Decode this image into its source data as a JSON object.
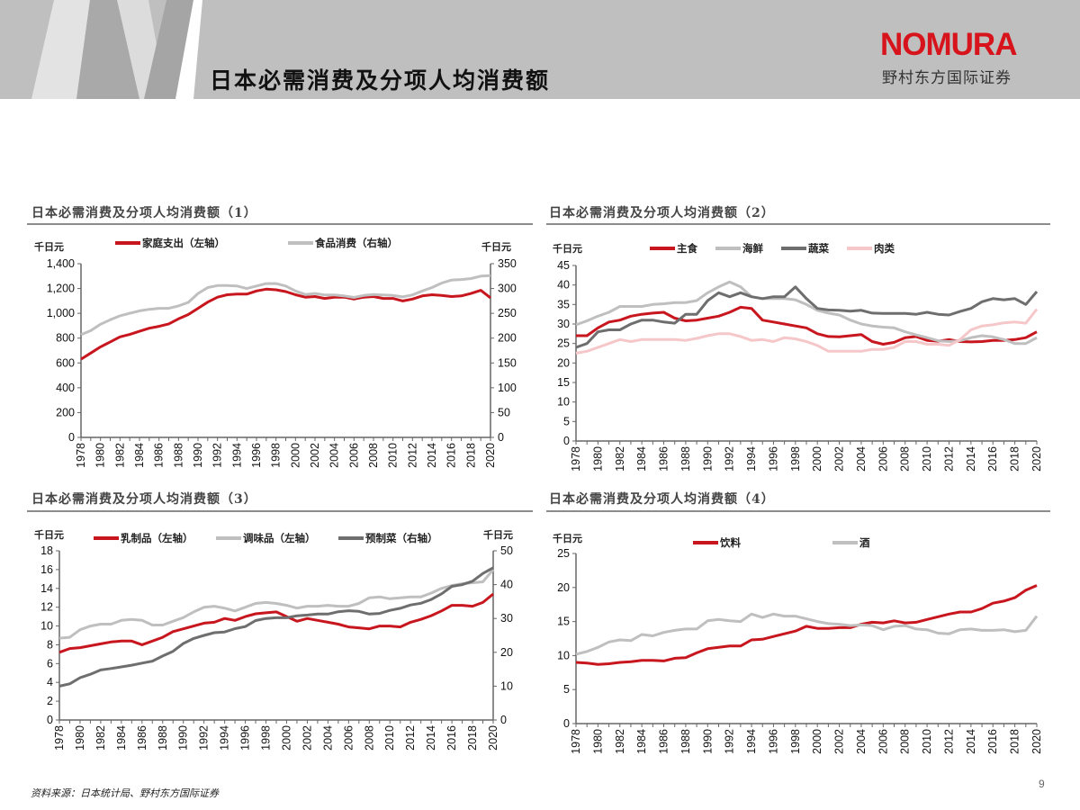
{
  "header": {
    "title": "日本必需消费及分项人均消费额",
    "logo_text": "NOMURA",
    "logo_sub": "野村东方国际证券",
    "band_color": "#bfbfbf"
  },
  "footer": {
    "source": "资料来源：日本统计局、野村东方国际证券",
    "page_number": "9"
  },
  "colors": {
    "red": "#c8161e",
    "light_gray": "#bfbfbf",
    "dark_gray": "#6e6e6e",
    "pink": "#f5c7c9"
  },
  "chart_data": [
    {
      "type": "line",
      "title": "日本必需消费及分项人均消费额（1）",
      "y_unit_left": "千日元",
      "y_unit_right": "千日元",
      "ylim_left": [
        0,
        1400
      ],
      "ylim_right": [
        0,
        350
      ],
      "yticks_left": [
        "0",
        "200",
        "400",
        "600",
        "800",
        "1,000",
        "1,200",
        "1,400"
      ],
      "yticks_right": [
        "0",
        "50",
        "100",
        "150",
        "200",
        "250",
        "300",
        "350"
      ],
      "x_start": 1978,
      "x_end": 2020,
      "xticks": [
        "1978",
        "1980",
        "1982",
        "1984",
        "1986",
        "1988",
        "1990",
        "1992",
        "1994",
        "1996",
        "1998",
        "2000",
        "2002",
        "2004",
        "2006",
        "2008",
        "2010",
        "2012",
        "2014",
        "2016",
        "2018",
        "2020"
      ],
      "grid": false,
      "legend": "top",
      "series": [
        {
          "name": "家庭支出（左轴）",
          "axis": "left",
          "color": "#c8161e",
          "values": [
            630,
            680,
            730,
            770,
            810,
            830,
            855,
            880,
            895,
            915,
            955,
            990,
            1040,
            1090,
            1130,
            1150,
            1155,
            1155,
            1180,
            1195,
            1190,
            1175,
            1150,
            1130,
            1135,
            1120,
            1130,
            1130,
            1115,
            1130,
            1135,
            1120,
            1120,
            1100,
            1115,
            1140,
            1150,
            1145,
            1135,
            1140,
            1160,
            1185,
            1125
          ]
        },
        {
          "name": "食品消费（右轴）",
          "axis": "right",
          "color": "#bfbfbf",
          "values": [
            207,
            215,
            228,
            237,
            245,
            250,
            255,
            258,
            260,
            260,
            265,
            272,
            290,
            302,
            306,
            306,
            305,
            300,
            305,
            310,
            310,
            305,
            295,
            288,
            290,
            287,
            287,
            285,
            282,
            286,
            288,
            287,
            286,
            283,
            287,
            295,
            302,
            311,
            317,
            318,
            320,
            325,
            326
          ]
        }
      ]
    },
    {
      "type": "line",
      "title": "日本必需消费及分项人均消费额（2）",
      "y_unit_left": "千日元",
      "ylim_left": [
        0,
        45
      ],
      "yticks_left": [
        "0",
        "5",
        "10",
        "15",
        "20",
        "25",
        "30",
        "35",
        "40",
        "45"
      ],
      "x_start": 1978,
      "x_end": 2020,
      "xticks": [
        "1978",
        "1980",
        "1982",
        "1984",
        "1986",
        "1988",
        "1990",
        "1992",
        "1994",
        "1996",
        "1998",
        "2000",
        "2002",
        "2004",
        "2006",
        "2008",
        "2010",
        "2012",
        "2014",
        "2016",
        "2018",
        "2020"
      ],
      "grid": false,
      "legend": "top",
      "series": [
        {
          "name": "主食",
          "axis": "left",
          "color": "#c8161e",
          "values": [
            27,
            27,
            29,
            30.5,
            31,
            32,
            32.5,
            32.8,
            33,
            31.5,
            30.8,
            31,
            31.5,
            32,
            33,
            34.3,
            34,
            31,
            30.5,
            30,
            29.5,
            29,
            27.5,
            26.8,
            26.7,
            27,
            27.3,
            25.5,
            24.8,
            25.3,
            26.5,
            26.8,
            25.8,
            25.6,
            26,
            25.5,
            25.4,
            25.5,
            25.8,
            25.8,
            26,
            26.5,
            28
          ]
        },
        {
          "name": "海鲜",
          "axis": "left",
          "color": "#bfbfbf",
          "values": [
            29.8,
            30.8,
            32,
            33,
            34.5,
            34.5,
            34.5,
            35,
            35.2,
            35.5,
            35.5,
            36,
            38,
            39.5,
            40.8,
            39.5,
            37,
            36.5,
            36.5,
            36.5,
            36.2,
            35,
            33.5,
            32.8,
            32.3,
            31,
            30,
            29.5,
            29.2,
            29,
            28,
            27.2,
            26.5,
            25.7,
            25.5,
            25.7,
            26.5,
            27,
            26.7,
            26,
            25,
            25,
            26.5
          ]
        },
        {
          "name": "蔬菜",
          "axis": "left",
          "color": "#6e6e6e",
          "values": [
            24,
            25,
            28,
            28.5,
            28.5,
            30,
            31,
            31,
            30.5,
            30.2,
            32.5,
            32.5,
            36,
            38,
            37,
            38,
            37,
            36.5,
            37,
            37,
            39.5,
            36.5,
            34,
            33.6,
            33.5,
            33.3,
            33.5,
            32.8,
            32.7,
            32.7,
            32.7,
            32.5,
            33,
            32.5,
            32.3,
            33.2,
            34,
            35.7,
            36.5,
            36.2,
            36.5,
            35,
            38.3
          ]
        },
        {
          "name": "肉类",
          "axis": "left",
          "color": "#f5c7c9",
          "values": [
            22.5,
            23,
            24,
            25,
            26,
            25.5,
            26,
            26,
            26,
            26,
            25.8,
            26.3,
            27,
            27.5,
            27.5,
            26.8,
            25.8,
            26,
            25.5,
            26.5,
            26.2,
            25.5,
            24.5,
            23,
            23,
            23,
            23,
            23.5,
            23.5,
            24,
            25.5,
            25.5,
            24.8,
            24.8,
            24.5,
            26,
            28.5,
            29.5,
            29.8,
            30.3,
            30.5,
            30.2,
            33.8
          ]
        }
      ]
    },
    {
      "type": "line",
      "title": "日本必需消费及分项人均消费额（3）",
      "y_unit_left": "千日元",
      "y_unit_right": "千日元",
      "ylim_left": [
        0,
        18
      ],
      "ylim_right": [
        0,
        50
      ],
      "yticks_left": [
        "0",
        "2",
        "4",
        "6",
        "8",
        "10",
        "12",
        "14",
        "16",
        "18"
      ],
      "yticks_right": [
        "0",
        "10",
        "20",
        "30",
        "40",
        "50"
      ],
      "x_start": 1978,
      "x_end": 2020,
      "xticks": [
        "1978",
        "1980",
        "1982",
        "1984",
        "1986",
        "1988",
        "1990",
        "1992",
        "1994",
        "1996",
        "1998",
        "2000",
        "2002",
        "2004",
        "2006",
        "2008",
        "2010",
        "2012",
        "2014",
        "2016",
        "2018",
        "2020"
      ],
      "grid": false,
      "legend": "top",
      "series": [
        {
          "name": "乳制品（左轴）",
          "axis": "left",
          "color": "#c8161e",
          "values": [
            7.2,
            7.6,
            7.7,
            7.9,
            8.1,
            8.3,
            8.4,
            8.4,
            8.0,
            8.4,
            8.8,
            9.4,
            9.7,
            10.0,
            10.3,
            10.4,
            10.8,
            10.6,
            11.0,
            11.3,
            11.4,
            11.5,
            11.0,
            10.5,
            10.8,
            10.6,
            10.4,
            10.2,
            9.9,
            9.8,
            9.7,
            10.0,
            10.0,
            9.9,
            10.4,
            10.7,
            11.1,
            11.6,
            12.2,
            12.2,
            12.1,
            12.5,
            13.4
          ]
        },
        {
          "name": "调味品（左轴）",
          "axis": "left",
          "color": "#bfbfbf",
          "values": [
            8.7,
            8.8,
            9.6,
            10.0,
            10.2,
            10.2,
            10.6,
            10.7,
            10.6,
            10.1,
            10.1,
            10.5,
            10.9,
            11.5,
            12.0,
            12.1,
            11.9,
            11.6,
            12.0,
            12.4,
            12.5,
            12.4,
            12.2,
            11.9,
            12.1,
            12.1,
            12.2,
            12.1,
            12.1,
            12.4,
            13.0,
            13.1,
            12.9,
            13.0,
            13.1,
            13.1,
            13.5,
            14.0,
            14.3,
            14.5,
            14.6,
            14.7,
            16.0
          ]
        },
        {
          "name": "预制菜（右轴）",
          "axis": "right",
          "color": "#6e6e6e",
          "values": [
            10,
            10.7,
            12.5,
            13.5,
            14.8,
            15.2,
            15.7,
            16.2,
            16.8,
            17.4,
            18.9,
            20.3,
            22.6,
            24.1,
            25.0,
            25.8,
            26.0,
            27.0,
            27.6,
            29.4,
            30.0,
            30.2,
            30.2,
            30.8,
            31.0,
            31.3,
            31.3,
            32.0,
            32.3,
            32.1,
            31.3,
            31.5,
            32.4,
            33.0,
            34.0,
            34.5,
            35.6,
            37.3,
            39.5,
            40.0,
            41.0,
            43.3,
            45.0
          ]
        }
      ]
    },
    {
      "type": "line",
      "title": "日本必需消费及分项人均消费额（4）",
      "y_unit_left": "千日元",
      "ylim_left": [
        0,
        25
      ],
      "yticks_left": [
        "0",
        "5",
        "10",
        "15",
        "20",
        "25"
      ],
      "x_start": 1978,
      "x_end": 2020,
      "xticks": [
        "1978",
        "1980",
        "1982",
        "1984",
        "1986",
        "1988",
        "1990",
        "1992",
        "1994",
        "1996",
        "1998",
        "2000",
        "2002",
        "2004",
        "2006",
        "2008",
        "2010",
        "2012",
        "2014",
        "2016",
        "2018",
        "2020"
      ],
      "grid": false,
      "legend": "top",
      "series": [
        {
          "name": "饮料",
          "axis": "left",
          "color": "#c8161e",
          "values": [
            9.0,
            8.9,
            8.7,
            8.8,
            9.0,
            9.1,
            9.3,
            9.3,
            9.2,
            9.6,
            9.7,
            10.4,
            11.0,
            11.2,
            11.4,
            11.4,
            12.3,
            12.4,
            12.8,
            13.2,
            13.6,
            14.3,
            14.0,
            14.0,
            14.1,
            14.1,
            14.6,
            14.9,
            14.8,
            15.1,
            14.8,
            14.9,
            15.3,
            15.7,
            16.1,
            16.4,
            16.4,
            16.9,
            17.7,
            18.0,
            18.5,
            19.6,
            20.3
          ]
        },
        {
          "name": "酒",
          "axis": "left",
          "color": "#bfbfbf",
          "values": [
            10.2,
            10.6,
            11.2,
            12.0,
            12.3,
            12.2,
            13.1,
            12.9,
            13.4,
            13.7,
            13.9,
            13.9,
            15.1,
            15.3,
            15.1,
            15.0,
            16.1,
            15.6,
            16.1,
            15.8,
            15.8,
            15.4,
            15.0,
            14.7,
            14.6,
            14.4,
            14.5,
            14.4,
            13.8,
            14.3,
            14.4,
            13.9,
            13.8,
            13.3,
            13.2,
            13.8,
            13.9,
            13.7,
            13.7,
            13.8,
            13.5,
            13.7,
            15.8
          ]
        }
      ]
    }
  ]
}
